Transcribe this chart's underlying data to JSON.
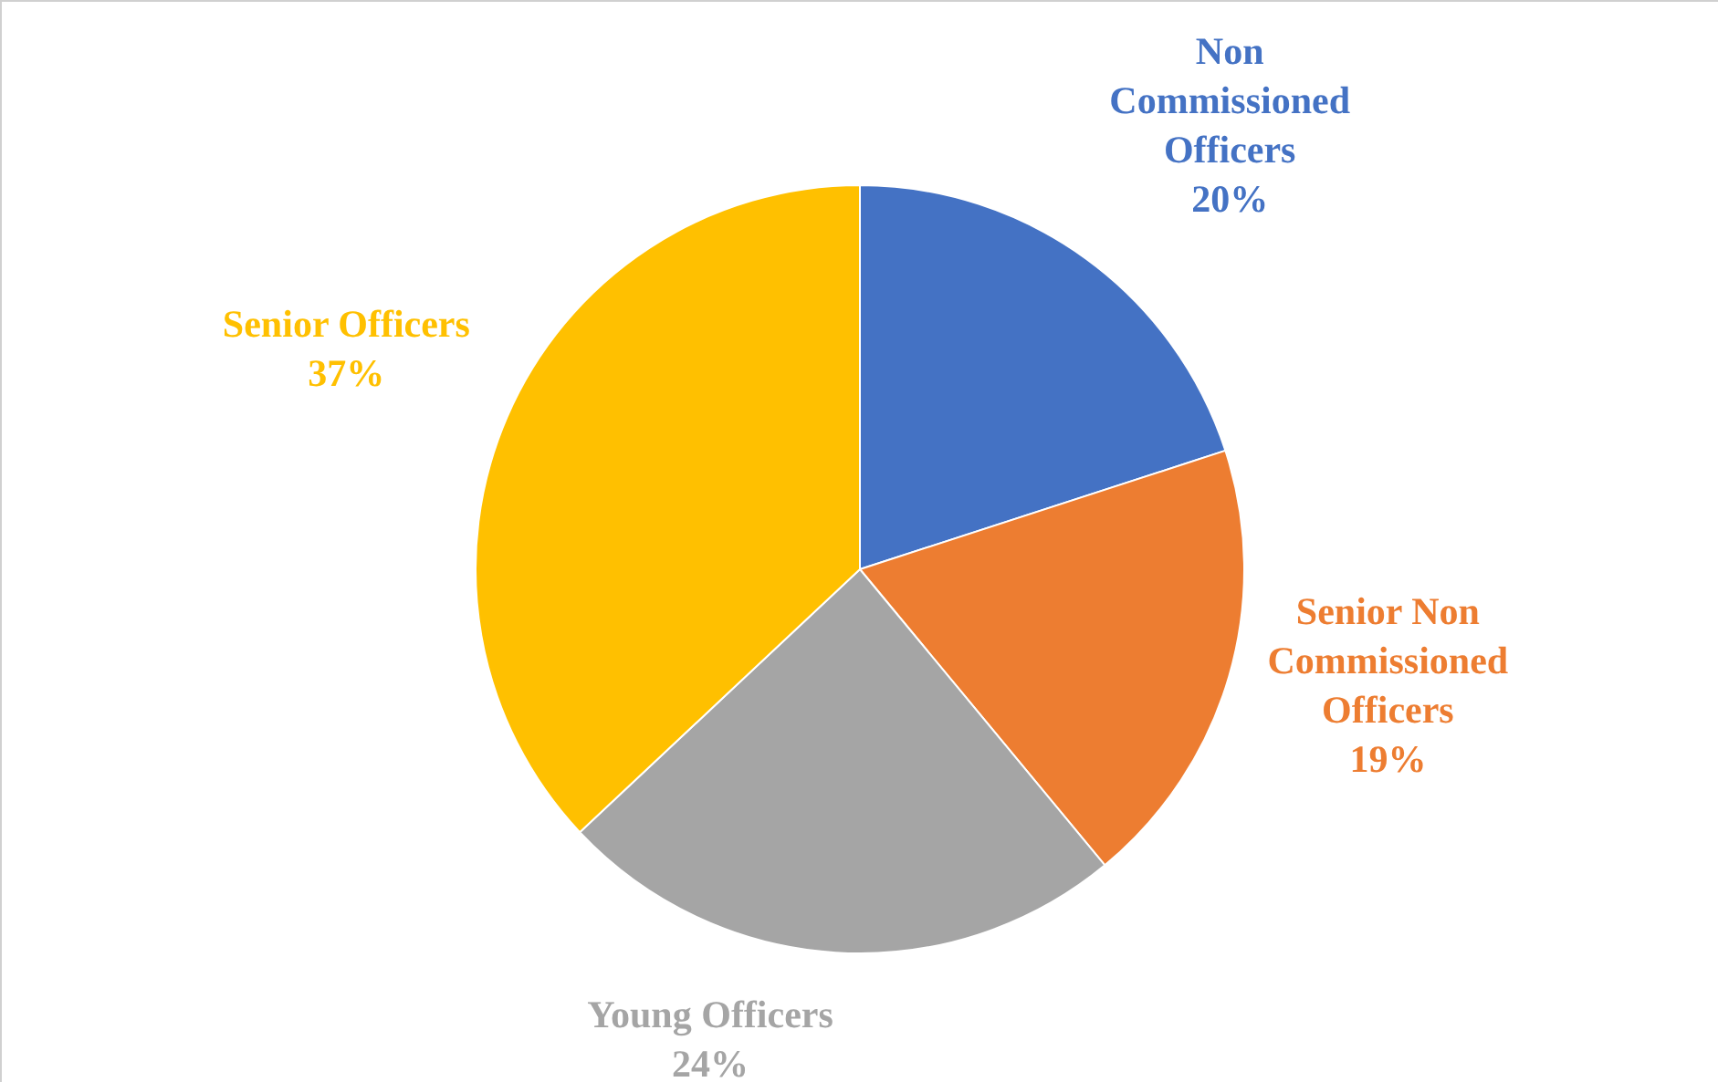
{
  "chart_data": {
    "type": "pie",
    "categories": [
      "Non Commissioned Officers",
      "Senior Non Commissioned Officers",
      "Young Officers",
      "Senior Officers"
    ],
    "values": [
      20,
      19,
      24,
      37
    ],
    "colors": [
      "#4472c4",
      "#ed7d31",
      "#a5a5a5",
      "#ffc000"
    ],
    "value_labels": [
      "20%",
      "19%",
      "24%",
      "37%"
    ],
    "legend": false
  }
}
